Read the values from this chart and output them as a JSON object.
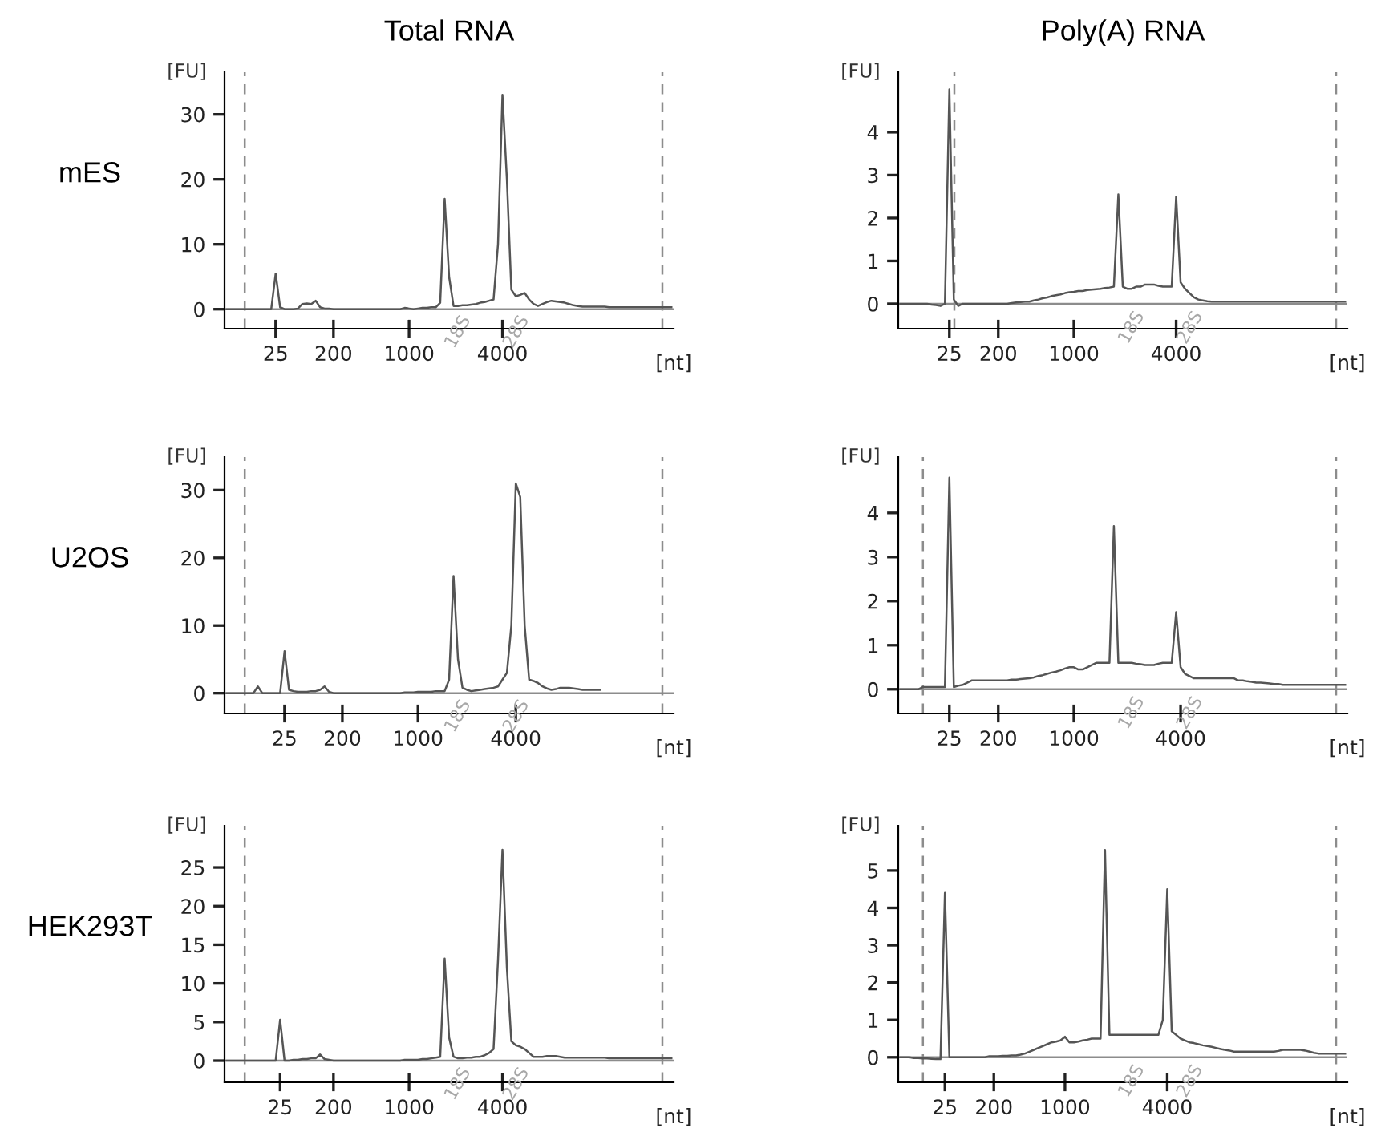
{
  "chart_data": [
    {
      "type": "line",
      "title": "Total RNA",
      "subtitle": "mES",
      "ylabel": "[FU]",
      "xlabel": "[nt]",
      "annotations": [
        "18S",
        "28S"
      ],
      "ylim": [
        -3,
        36.5
      ],
      "yticks": [
        0,
        10,
        20,
        30
      ],
      "categories": [
        null,
        null,
        null,
        null,
        null,
        null,
        null,
        null,
        null,
        null,
        null,
        "25",
        null,
        null,
        null,
        null,
        null,
        null,
        null,
        null,
        null,
        null,
        null,
        null,
        "200",
        null,
        null,
        null,
        null,
        null,
        null,
        null,
        null,
        null,
        null,
        null,
        null,
        null,
        null,
        null,
        null,
        "1000",
        null,
        null,
        null,
        null,
        null,
        null,
        null,
        null,
        null,
        null,
        null,
        null,
        null,
        null,
        null,
        null,
        null,
        null,
        null,
        null,
        "4000",
        null,
        null,
        null,
        null,
        null,
        null,
        null,
        null,
        null,
        null,
        null,
        null,
        null,
        null,
        null,
        null,
        null,
        null,
        null,
        null,
        null,
        null,
        null,
        null,
        null,
        null,
        null,
        null,
        null,
        null,
        null,
        null,
        null,
        null,
        null,
        null,
        null,
        null
      ],
      "ref_lines": [
        {
          "axis": "y",
          "value": 0,
          "color": "#8c8c8c",
          "line_style": "solid"
        }
      ],
      "series": [
        {
          "color": "#555555",
          "values": [
            0,
            0,
            0,
            0,
            0,
            0,
            0,
            0,
            0,
            0,
            0,
            5.5,
            0.3,
            0,
            0,
            0,
            0.1,
            0.8,
            0.9,
            0.8,
            1.3,
            0.3,
            0.1,
            0.1,
            0,
            0,
            0,
            0,
            0,
            0,
            0,
            0,
            0,
            0,
            0,
            0,
            0,
            0,
            0,
            0,
            0.2,
            0.1,
            0,
            0.1,
            0.2,
            0.2,
            0.3,
            0.3,
            1,
            17,
            5,
            0.5,
            0.5,
            0.6,
            0.6,
            0.7,
            0.8,
            1,
            1.1,
            1.3,
            1.5,
            10,
            33,
            20,
            3,
            2,
            2.2,
            2.5,
            1.5,
            0.8,
            0.5,
            0.8,
            1.1,
            1.3,
            1.2,
            1.1,
            1,
            0.8,
            0.6,
            0.5,
            0.4,
            0.4,
            0.4,
            0.4,
            0.4,
            0.4,
            0.3,
            0.3,
            0.3,
            0.3,
            0.3,
            0.3,
            0.3,
            0.3,
            0.3,
            0.3,
            0.3,
            0.3,
            0.3,
            0.3,
            0.3
          ]
        }
      ]
    },
    {
      "type": "line",
      "title": "Poly(A) RNA",
      "ylabel": "[FU]",
      "xlabel": "[nt]",
      "annotations": [
        "18S",
        "28S"
      ],
      "ylim": [
        -0.58,
        5.4
      ],
      "yticks": [
        0,
        1,
        2,
        3,
        4
      ],
      "categories": [
        null,
        null,
        null,
        null,
        null,
        null,
        null,
        null,
        null,
        null,
        null,
        "25",
        null,
        null,
        null,
        null,
        null,
        null,
        null,
        null,
        null,
        null,
        "200",
        null,
        null,
        null,
        null,
        null,
        null,
        null,
        null,
        null,
        null,
        null,
        null,
        null,
        null,
        null,
        null,
        "1000",
        null,
        null,
        null,
        null,
        null,
        null,
        null,
        null,
        null,
        null,
        null,
        null,
        null,
        null,
        null,
        null,
        null,
        null,
        null,
        null,
        null,
        null,
        "4000",
        null,
        null,
        null,
        null,
        null,
        null,
        null,
        null,
        null,
        null,
        null,
        null,
        null,
        null,
        null,
        null,
        null,
        null,
        null,
        null,
        null,
        null,
        null,
        null,
        null,
        null,
        null,
        null,
        null,
        null,
        null,
        null,
        null,
        null,
        null,
        null,
        null,
        null
      ],
      "ref_lines": [
        {
          "axis": "y",
          "value": 0,
          "color": "#8c8c8c",
          "line_style": "solid"
        }
      ],
      "series": [
        {
          "color": "#555555",
          "values": [
            0,
            0,
            0,
            0,
            0,
            0,
            0,
            -0.02,
            -0.03,
            -0.05,
            0,
            5,
            0.1,
            -0.05,
            0,
            0,
            0,
            0,
            0,
            0,
            0,
            0,
            0,
            0,
            0,
            0.02,
            0.03,
            0.04,
            0.05,
            0.05,
            0.08,
            0.1,
            0.13,
            0.15,
            0.18,
            0.2,
            0.22,
            0.25,
            0.27,
            0.28,
            0.3,
            0.3,
            0.32,
            0.33,
            0.34,
            0.35,
            0.37,
            0.38,
            0.4,
            2.55,
            0.4,
            0.35,
            0.35,
            0.4,
            0.4,
            0.45,
            0.45,
            0.45,
            0.42,
            0.4,
            0.4,
            0.4,
            2.5,
            0.5,
            0.35,
            0.25,
            0.15,
            0.1,
            0.08,
            0.06,
            0.05,
            0.05,
            0.05,
            0.05,
            0.05,
            0.05,
            0.05,
            0.05,
            0.05,
            0.05,
            0.05,
            0.05,
            0.05,
            0.05,
            0.05,
            0.05,
            0.05,
            0.05,
            0.05,
            0.05,
            0.05,
            0.05,
            0.05,
            0.05,
            0.05,
            0.05,
            0.05,
            0.05,
            0.05,
            0.05,
            0.05
          ]
        }
      ]
    },
    {
      "type": "line",
      "subtitle": "U2OS",
      "ylabel": "[FU]",
      "xlabel": "[nt]",
      "annotations": [
        "18S",
        "28S"
      ],
      "ylim": [
        -3,
        34.9
      ],
      "yticks": [
        0,
        10,
        20,
        30
      ],
      "categories": [
        null,
        null,
        null,
        null,
        null,
        null,
        null,
        null,
        null,
        null,
        null,
        null,
        null,
        "25",
        null,
        null,
        null,
        null,
        null,
        null,
        null,
        null,
        null,
        null,
        null,
        null,
        "200",
        null,
        null,
        null,
        null,
        null,
        null,
        null,
        null,
        null,
        null,
        null,
        null,
        null,
        null,
        null,
        null,
        "1000",
        null,
        null,
        null,
        null,
        null,
        null,
        null,
        null,
        null,
        null,
        null,
        null,
        null,
        null,
        null,
        null,
        null,
        null,
        null,
        null,
        null,
        "4000",
        null,
        null,
        null,
        null,
        null,
        null,
        null,
        null,
        null,
        null,
        null,
        null,
        null,
        null,
        null,
        null,
        null,
        null,
        null,
        null,
        null,
        null,
        null,
        null,
        null,
        null,
        null,
        null,
        null,
        null,
        null,
        null,
        null,
        null,
        null
      ],
      "ref_lines": [
        {
          "axis": "y",
          "value": 0,
          "color": "#8c8c8c",
          "line_style": "solid"
        }
      ],
      "series": [
        {
          "color": "#555555",
          "values": [
            0,
            0,
            0,
            0,
            0,
            0,
            0,
            1,
            0,
            0,
            0,
            0,
            0,
            6.2,
            0.5,
            0.3,
            0.2,
            0.2,
            0.2,
            0.3,
            0.3,
            0.5,
            1,
            0.2,
            0,
            0,
            0,
            0,
            0,
            0,
            0,
            0,
            0,
            0,
            0,
            0,
            0,
            0,
            0,
            0,
            0.1,
            0.1,
            0.1,
            0.2,
            0.2,
            0.2,
            0.2,
            0.3,
            0.3,
            0.3,
            2,
            17.3,
            5,
            0.8,
            0.5,
            0.3,
            0.4,
            0.5,
            0.6,
            0.7,
            0.8,
            1,
            2,
            3,
            10,
            31,
            29,
            10,
            2,
            1.8,
            1.5,
            1,
            0.7,
            0.5,
            0.6,
            0.8,
            0.8,
            0.8,
            0.7,
            0.6,
            0.5,
            0.5,
            0.5,
            0.5,
            0.5,
            null,
            null,
            null,
            null,
            null,
            null,
            null,
            null,
            null,
            null,
            null,
            null,
            null,
            null,
            null,
            null
          ]
        }
      ]
    },
    {
      "type": "line",
      "ylabel": "[FU]",
      "xlabel": "[nt]",
      "annotations": [
        "18S",
        "28S"
      ],
      "ylim": [
        -0.55,
        5.27
      ],
      "yticks": [
        0,
        1,
        2,
        3,
        4
      ],
      "categories": [
        null,
        null,
        null,
        null,
        null,
        null,
        null,
        null,
        null,
        null,
        null,
        "25",
        null,
        null,
        null,
        null,
        null,
        null,
        null,
        null,
        null,
        null,
        "200",
        null,
        null,
        null,
        null,
        null,
        null,
        null,
        null,
        null,
        null,
        null,
        null,
        null,
        null,
        null,
        null,
        "1000",
        null,
        null,
        null,
        null,
        null,
        null,
        null,
        null,
        null,
        null,
        null,
        null,
        null,
        null,
        null,
        null,
        null,
        null,
        null,
        null,
        null,
        null,
        null,
        "4000",
        null,
        null,
        null,
        null,
        null,
        null,
        null,
        null,
        null,
        null,
        null,
        null,
        null,
        null,
        null,
        null,
        null,
        null,
        null,
        null,
        null,
        null,
        null,
        null,
        null,
        null,
        null,
        null,
        null,
        null,
        null,
        null,
        null,
        null,
        null,
        null,
        null
      ],
      "ref_lines": [
        {
          "axis": "y",
          "value": 0,
          "color": "#8c8c8c",
          "line_style": "solid"
        }
      ],
      "series": [
        {
          "color": "#555555",
          "values": [
            0,
            0,
            0,
            0,
            0,
            0.05,
            0.05,
            0.05,
            0.05,
            0.05,
            0.05,
            4.8,
            0.05,
            0.08,
            0.1,
            0.15,
            0.2,
            0.2,
            0.2,
            0.2,
            0.2,
            0.2,
            0.2,
            0.2,
            0.2,
            0.22,
            0.22,
            0.23,
            0.24,
            0.25,
            0.27,
            0.3,
            0.32,
            0.35,
            0.38,
            0.4,
            0.43,
            0.47,
            0.5,
            0.5,
            0.45,
            0.45,
            0.5,
            0.55,
            0.6,
            0.6,
            0.6,
            0.6,
            3.7,
            0.6,
            0.6,
            0.6,
            0.6,
            0.58,
            0.57,
            0.55,
            0.55,
            0.55,
            0.58,
            0.6,
            0.6,
            0.6,
            1.75,
            0.5,
            0.35,
            0.3,
            0.25,
            0.25,
            0.25,
            0.25,
            0.25,
            0.25,
            0.25,
            0.25,
            0.25,
            0.25,
            0.2,
            0.2,
            0.18,
            0.17,
            0.15,
            0.15,
            0.14,
            0.13,
            0.12,
            0.12,
            0.1,
            0.1,
            0.1,
            0.1,
            0.1,
            0.1,
            0.1,
            0.1,
            0.1,
            0.1,
            0.1,
            0.1,
            0.1,
            0.1,
            0.1
          ]
        }
      ]
    },
    {
      "type": "line",
      "subtitle": "HEK293T",
      "ylabel": "[FU]",
      "xlabel": "[nt]",
      "annotations": [
        "18S",
        "28S"
      ],
      "ylim": [
        -2.8,
        30.4
      ],
      "yticks": [
        0,
        5,
        10,
        15,
        20,
        25
      ],
      "categories": [
        null,
        null,
        null,
        null,
        null,
        null,
        null,
        null,
        null,
        null,
        null,
        null,
        "25",
        null,
        null,
        null,
        null,
        null,
        null,
        null,
        null,
        null,
        null,
        null,
        "200",
        null,
        null,
        null,
        null,
        null,
        null,
        null,
        null,
        null,
        null,
        null,
        null,
        null,
        null,
        null,
        null,
        "1000",
        null,
        null,
        null,
        null,
        null,
        null,
        null,
        null,
        null,
        null,
        null,
        null,
        null,
        null,
        null,
        null,
        null,
        null,
        null,
        null,
        "4000",
        null,
        null,
        null,
        null,
        null,
        null,
        null,
        null,
        null,
        null,
        null,
        null,
        null,
        null,
        null,
        null,
        null,
        null,
        null,
        null,
        null,
        null,
        null,
        null,
        null,
        null,
        null,
        null,
        null,
        null,
        null,
        null,
        null,
        null,
        null,
        null,
        null,
        null
      ],
      "ref_lines": [
        {
          "axis": "y",
          "value": 0,
          "color": "#8c8c8c",
          "line_style": "solid"
        }
      ],
      "series": [
        {
          "color": "#555555",
          "values": [
            0,
            0,
            0,
            0,
            0,
            0,
            0,
            0,
            0,
            0,
            0,
            0,
            5.3,
            0,
            0,
            0.1,
            0.1,
            0.2,
            0.2,
            0.3,
            0.3,
            0.8,
            0.2,
            0.1,
            0,
            0,
            0,
            0,
            0,
            0,
            0,
            0,
            0,
            0,
            0,
            0,
            0,
            0,
            0,
            0,
            0.1,
            0.1,
            0.1,
            0.1,
            0.2,
            0.2,
            0.3,
            0.4,
            0.5,
            13.2,
            3,
            0.5,
            0.3,
            0.3,
            0.4,
            0.4,
            0.5,
            0.5,
            0.7,
            1,
            1.5,
            13,
            27.3,
            12,
            2.5,
            2,
            1.8,
            1.5,
            1,
            0.5,
            0.5,
            0.5,
            0.6,
            0.6,
            0.6,
            0.5,
            0.4,
            0.4,
            0.4,
            0.4,
            0.4,
            0.4,
            0.4,
            0.4,
            0.4,
            0.4,
            0.3,
            0.3,
            0.3,
            0.3,
            0.3,
            0.3,
            0.3,
            0.3,
            0.3,
            0.3,
            0.3,
            0.3,
            0.3,
            0.3,
            0.3
          ]
        }
      ]
    },
    {
      "type": "line",
      "ylabel": "[FU]",
      "xlabel": "[nt]",
      "annotations": [
        "18S",
        "28S"
      ],
      "ylim": [
        -0.67,
        6.2
      ],
      "yticks": [
        0,
        1,
        2,
        3,
        4,
        5
      ],
      "categories": [
        null,
        null,
        null,
        null,
        null,
        null,
        null,
        null,
        null,
        null,
        "25",
        null,
        null,
        null,
        null,
        null,
        null,
        null,
        null,
        null,
        null,
        "200",
        null,
        null,
        null,
        null,
        null,
        null,
        null,
        null,
        null,
        null,
        null,
        null,
        null,
        null,
        null,
        "1000",
        null,
        null,
        null,
        null,
        null,
        null,
        null,
        null,
        null,
        null,
        null,
        null,
        null,
        null,
        null,
        null,
        null,
        null,
        null,
        null,
        null,
        null,
        "4000",
        null,
        null,
        null,
        null,
        null,
        null,
        null,
        null,
        null,
        null,
        null,
        null,
        null,
        null,
        null,
        null,
        null,
        null,
        null,
        null,
        null,
        null,
        null,
        null,
        null,
        null,
        null,
        null,
        null,
        null,
        null,
        null,
        null,
        null,
        null,
        null,
        null,
        null,
        null,
        null
      ],
      "ref_lines": [
        {
          "axis": "y",
          "value": 0,
          "color": "#8c8c8c",
          "line_style": "solid"
        }
      ],
      "series": [
        {
          "color": "#555555",
          "values": [
            0,
            0,
            0,
            -0.02,
            -0.02,
            -0.03,
            -0.03,
            -0.04,
            -0.05,
            -0.05,
            4.4,
            0,
            0,
            0,
            0,
            0,
            0,
            0,
            0,
            0,
            0.03,
            0.03,
            0.03,
            0.04,
            0.04,
            0.05,
            0.05,
            0.07,
            0.1,
            0.15,
            0.2,
            0.25,
            0.3,
            0.35,
            0.4,
            0.42,
            0.45,
            0.55,
            0.4,
            0.4,
            0.42,
            0.45,
            0.47,
            0.5,
            0.5,
            0.5,
            5.55,
            0.6,
            0.6,
            0.6,
            0.6,
            0.6,
            0.6,
            0.6,
            0.6,
            0.6,
            0.6,
            0.6,
            0.6,
            1,
            4.5,
            0.7,
            0.6,
            0.5,
            0.45,
            0.4,
            0.38,
            0.35,
            0.32,
            0.3,
            0.28,
            0.25,
            0.22,
            0.2,
            0.18,
            0.15,
            0.15,
            0.15,
            0.15,
            0.15,
            0.15,
            0.15,
            0.15,
            0.15,
            0.15,
            0.17,
            0.2,
            0.2,
            0.2,
            0.2,
            0.2,
            0.18,
            0.15,
            0.12,
            0.1,
            0.1,
            0.1,
            0.1,
            0.1,
            0.1,
            0.1
          ]
        }
      ]
    }
  ]
}
